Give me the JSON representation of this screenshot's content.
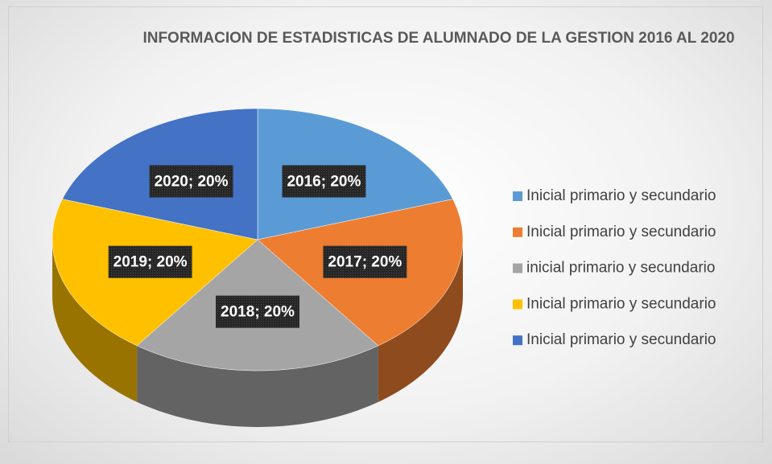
{
  "chart_data": {
    "type": "pie",
    "title": "INFORMACION DE ESTADISTICAS DE ALUMNADO DE LA GESTION 2016 AL 2020",
    "categories": [
      "Inicial primario y secundario",
      "Inicial primario y secundario",
      "inicial primario y secundario",
      "Inicial primario y secundario",
      "Inicial primario y secundario"
    ],
    "values": [
      20,
      20,
      20,
      20,
      20
    ],
    "value_labels": [
      "2016; 20%",
      "2017; 20%",
      "2018; 20%",
      "2019; 20%",
      "2020; 20%"
    ],
    "colors": [
      "#5b9bd5",
      "#ed7d31",
      "#a5a5a5",
      "#ffc000",
      "#4472c4"
    ],
    "legend": "right"
  }
}
